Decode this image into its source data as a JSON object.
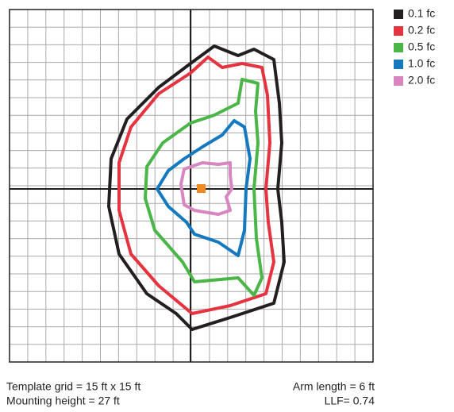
{
  "legend": [
    {
      "label": "0.1 fc",
      "color": "#231f20"
    },
    {
      "label": "0.2 fc",
      "color": "#e5333f"
    },
    {
      "label": "0.5 fc",
      "color": "#4bb648"
    },
    {
      "label": "1.0 fc",
      "color": "#1479be"
    },
    {
      "label": "2.0 fc",
      "color": "#d886c0"
    }
  ],
  "footer": {
    "template_grid": "Template grid = 15 ft x 15 ft",
    "mounting_height": "Mounting height = 27 ft",
    "arm_length": "Arm length = 6 ft",
    "llf": "LLF= 0.74"
  }
}
